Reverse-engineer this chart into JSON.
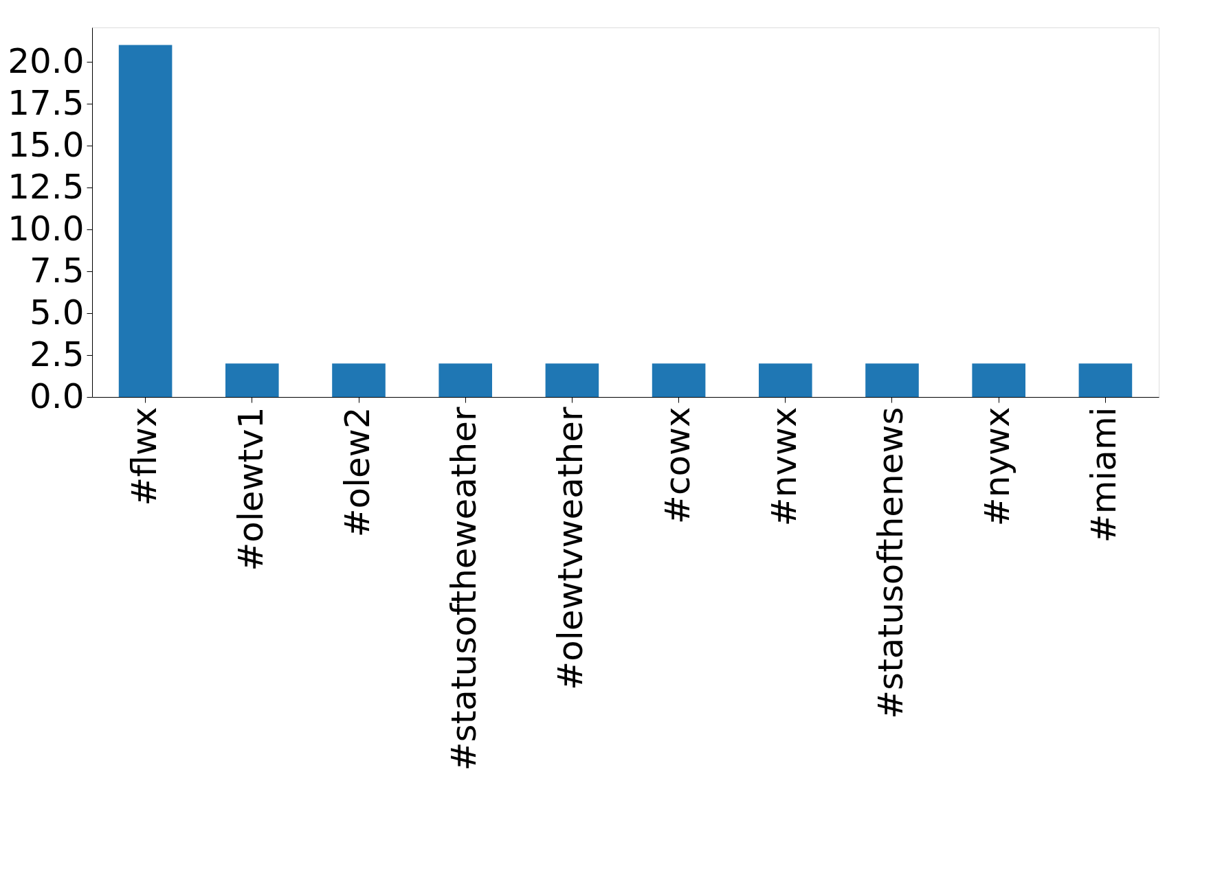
{
  "chart_data": {
    "type": "bar",
    "categories": [
      "#flwx",
      "#olewtv1",
      "#olew2",
      "#statusoftheweather",
      "#olewtvweather",
      "#cowx",
      "#nvwx",
      "#statusofthenews",
      "#nywx",
      "#miami"
    ],
    "values": [
      21,
      2,
      2,
      2,
      2,
      2,
      2,
      2,
      2,
      2
    ],
    "color": "#1f77b4",
    "ylim": [
      0,
      22.05
    ],
    "yticks": [
      {
        "value": 0,
        "label": "0.0"
      },
      {
        "value": 2.5,
        "label": "2.5"
      },
      {
        "value": 5,
        "label": "5.0"
      },
      {
        "value": 7.5,
        "label": "7.5"
      },
      {
        "value": 10,
        "label": "10.0"
      },
      {
        "value": 12.5,
        "label": "12.5"
      },
      {
        "value": 15,
        "label": "15.0"
      },
      {
        "value": 17.5,
        "label": "17.5"
      },
      {
        "value": 20,
        "label": "20.0"
      }
    ],
    "grid": false
  }
}
